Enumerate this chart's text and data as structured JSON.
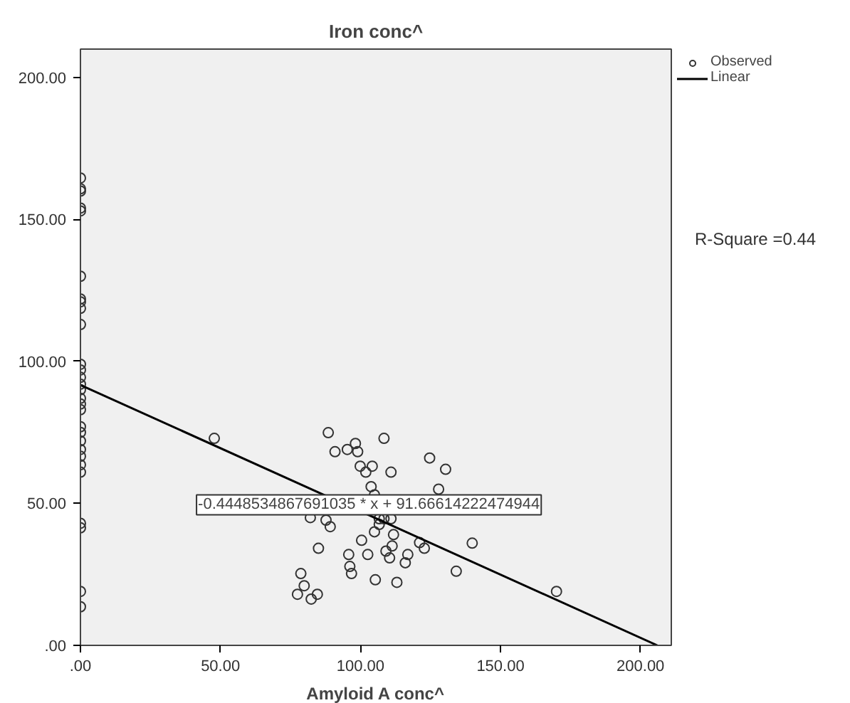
{
  "chart_data": {
    "type": "scatter",
    "title": "Iron conc^",
    "xlabel": "Amyloid A conc^",
    "xlim": [
      0,
      211
    ],
    "ylim": [
      0,
      210
    ],
    "xticks": [
      {
        "value": 0,
        "label": ".00"
      },
      {
        "value": 50,
        "label": "50.00"
      },
      {
        "value": 100,
        "label": "100.00"
      },
      {
        "value": 150,
        "label": "150.00"
      },
      {
        "value": 200,
        "label": "200.00"
      }
    ],
    "yticks": [
      {
        "value": 0,
        "label": ".00"
      },
      {
        "value": 50,
        "label": "50.00"
      },
      {
        "value": 100,
        "label": "100.00"
      },
      {
        "value": 150,
        "label": "150.00"
      },
      {
        "value": 200,
        "label": "200.00"
      }
    ],
    "grid": false,
    "legend": "top right",
    "marker": "circle",
    "series": [
      {
        "name": "Observed",
        "color": "#333333",
        "x": [
          0,
          0,
          0,
          0,
          0,
          0,
          0,
          0,
          0,
          0,
          0,
          0,
          0,
          0,
          0,
          0,
          0,
          0,
          0,
          0,
          0,
          0,
          0,
          0,
          0,
          0,
          0,
          0,
          0,
          47.8,
          88.5,
          98.2,
          95.3,
          90.9,
          99.0,
          108.4,
          99.9,
          104.2,
          101.9,
          110.9,
          124.7,
          130.4,
          103.8,
          127.9,
          105.0,
          82.1,
          87.7,
          89.2,
          106.7,
          110.9,
          108.4,
          106.7,
          105.0,
          111.8,
          100.4,
          111.3,
          121.1,
          122.8,
          139.9,
          85.0,
          95.8,
          102.6,
          109.1,
          110.4,
          116.9,
          116.0,
          96.2,
          96.8,
          134.2,
          78.7,
          79.9,
          105.3,
          113.0,
          77.5,
          84.6,
          82.4,
          170.0
        ],
        "values": [
          164.6,
          160.8,
          160.0,
          154.0,
          153.0,
          130.0,
          122.0,
          121.0,
          118.7,
          113.0,
          99.0,
          97.0,
          94.4,
          92.0,
          90.0,
          87.0,
          85.0,
          83.0,
          77.0,
          75.0,
          72.0,
          69.0,
          66.6,
          63.6,
          61.0,
          43.0,
          41.4,
          19.0,
          13.6,
          72.9,
          74.9,
          71.1,
          69.0,
          68.2,
          68.2,
          72.9,
          63.1,
          63.1,
          61.0,
          61.0,
          66.0,
          62.0,
          55.9,
          55.0,
          53.0,
          45.0,
          44.1,
          41.8,
          44.6,
          44.6,
          44.6,
          42.6,
          40.0,
          39.0,
          37.0,
          35.0,
          36.2,
          34.2,
          36.0,
          34.2,
          32.0,
          32.0,
          33.2,
          30.8,
          32.0,
          29.1,
          27.8,
          25.3,
          26.1,
          25.3,
          21.0,
          23.1,
          22.2,
          18.0,
          18.0,
          16.3,
          19.0
        ]
      },
      {
        "name": "Linear",
        "type": "line",
        "marker": "none",
        "color": "#000000",
        "x": [
          0,
          206
        ],
        "values": [
          91.7,
          0.0
        ]
      }
    ],
    "annotations": [
      {
        "text": "-0.4448534867691035 * x + 91.66614222474944",
        "x": 103,
        "y": 49.5
      },
      "R-Square =0.44"
    ]
  }
}
